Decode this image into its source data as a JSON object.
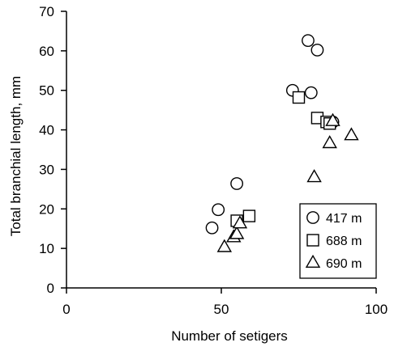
{
  "chart_data": {
    "type": "scatter",
    "xlabel": "Number of setigers",
    "ylabel": "Total branchial length,  mm",
    "xlim": [
      0,
      100
    ],
    "ylim": [
      0,
      70
    ],
    "x_ticks": [
      0,
      50,
      100
    ],
    "x_tick_labels": [
      "0",
      "50",
      "100"
    ],
    "y_ticks": [
      0,
      10,
      20,
      30,
      40,
      50,
      60,
      70
    ],
    "y_tick_labels": [
      "0",
      "10",
      "20",
      "30",
      "40",
      "50",
      "60",
      "70"
    ],
    "grid": false,
    "legend_position": "bottom-right",
    "series": [
      {
        "name": "417 m",
        "marker": "circle",
        "points": [
          {
            "x": 47,
            "y": 15.2
          },
          {
            "x": 49,
            "y": 19.8
          },
          {
            "x": 55,
            "y": 26.4
          },
          {
            "x": 73,
            "y": 50
          },
          {
            "x": 78,
            "y": 62.6
          },
          {
            "x": 79,
            "y": 49.4
          },
          {
            "x": 81,
            "y": 60.2
          },
          {
            "x": 86,
            "y": 42
          }
        ]
      },
      {
        "name": "688 m",
        "marker": "square",
        "points": [
          {
            "x": 55,
            "y": 17
          },
          {
            "x": 59,
            "y": 18.2
          },
          {
            "x": 75,
            "y": 48.2
          },
          {
            "x": 81,
            "y": 43
          },
          {
            "x": 84,
            "y": 42
          },
          {
            "x": 85,
            "y": 41.6
          }
        ]
      },
      {
        "name": "690 m",
        "marker": "triangle",
        "points": [
          {
            "x": 51,
            "y": 10.3
          },
          {
            "x": 54,
            "y": 12.8
          },
          {
            "x": 55,
            "y": 13.6
          },
          {
            "x": 56,
            "y": 16.3
          },
          {
            "x": 80,
            "y": 28
          },
          {
            "x": 85,
            "y": 36.6
          },
          {
            "x": 86,
            "y": 42.2
          },
          {
            "x": 92,
            "y": 38.6
          }
        ]
      }
    ]
  }
}
